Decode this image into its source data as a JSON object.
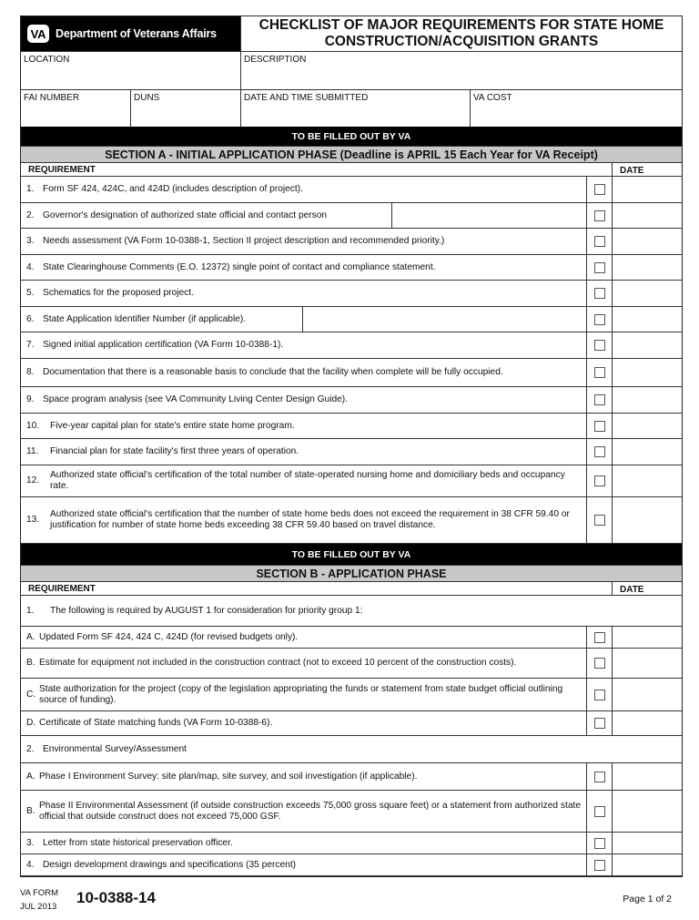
{
  "header": {
    "agency": "Department of Veterans Affairs",
    "logo_text": "VA",
    "title_line1": "CHECKLIST OF MAJOR REQUIREMENTS FOR STATE HOME",
    "title_line2": "CONSTRUCTION/ACQUISITION GRANTS"
  },
  "fields": {
    "location": "LOCATION",
    "description": "DESCRIPTION",
    "fai_number": "FAI NUMBER",
    "duns": "DUNS",
    "date_time_submitted": "DATE AND TIME SUBMITTED",
    "va_cost": "VA COST"
  },
  "banner": "TO BE FILLED OUT BY VA",
  "col_requirement": "REQUIREMENT",
  "col_date": "DATE",
  "section_a": {
    "title": "SECTION A - INITIAL APPLICATION PHASE (Deadline is APRIL 15 Each Year for VA Receipt)",
    "items": [
      {
        "num": "1.",
        "text": "Form SF 424, 424C, and 424D (includes description of project)."
      },
      {
        "num": "2.",
        "text": "Governor's designation of authorized state official and contact person"
      },
      {
        "num": "3.",
        "text": "Needs assessment (VA Form 10-0388-1, Section II project description and recommended priority.)"
      },
      {
        "num": "4.",
        "text": "State Clearinghouse Comments (E.O. 12372) single point of contact and compliance statement."
      },
      {
        "num": "5.",
        "text": "Schematics for the proposed project."
      },
      {
        "num": "6.",
        "text": "State Application Identifier Number (if applicable)."
      },
      {
        "num": "7.",
        "text": "Signed initial application certification (VA Form 10-0388-1)."
      },
      {
        "num": "8.",
        "text": "Documentation that there is a reasonable basis to conclude that the facility when complete will be fully occupied."
      },
      {
        "num": "9.",
        "text": "Space program analysis (see VA Community Living Center Design Guide)."
      },
      {
        "num": "10.",
        "text": "Five-year capital plan for state's entire state home program."
      },
      {
        "num": "11.",
        "text": "Financial plan for state facility's first three years of operation."
      },
      {
        "num": "12.",
        "text": "Authorized state official's certification of the total number of state-operated nursing home and domiciliary beds and occupancy rate."
      },
      {
        "num": "13.",
        "text": "Authorized state official's certification that the number of state home beds does not exceed the requirement in 38 CFR 59.40 or justification for number of state home beds exceeding 38 CFR 59.40 based on travel distance."
      }
    ]
  },
  "section_b": {
    "title": "SECTION B - APPLICATION PHASE",
    "items": [
      {
        "num": "1.",
        "text": "The following is required by AUGUST 1 for consideration for priority group 1:"
      },
      {
        "num": "A.",
        "text": "Updated Form SF 424, 424 C, 424D (for revised budgets only)."
      },
      {
        "num": "B.",
        "text": "Estimate for equipment not included in the construction contract (not to exceed 10 percent of the construction costs)."
      },
      {
        "num": "C.",
        "text": "State authorization for the project (copy of the legislation appropriating the funds or statement from state budget official outlining source of funding)."
      },
      {
        "num": "D.",
        "text": "Certificate of State matching funds (VA Form 10-0388-6)."
      },
      {
        "num": "2.",
        "text": "Environmental Survey/Assessment"
      },
      {
        "num": "A.",
        "text": "Phase I Environment Survey: site plan/map, site survey, and soil investigation (if applicable)."
      },
      {
        "num": "B.",
        "text": "Phase II Environmental Assessment (if outside construction exceeds 75,000 gross square feet) or a statement from authorized state official that outside construct does not exceed 75,000 GSF."
      },
      {
        "num": "3.",
        "text": "Letter from state historical preservation officer."
      },
      {
        "num": "4.",
        "text": "Design development drawings and specifications (35 percent)"
      }
    ]
  },
  "footer": {
    "form_label": "VA FORM",
    "form_date": "JUL 2013",
    "form_number": "10-0388-14",
    "page": "Page 1 of 2"
  }
}
